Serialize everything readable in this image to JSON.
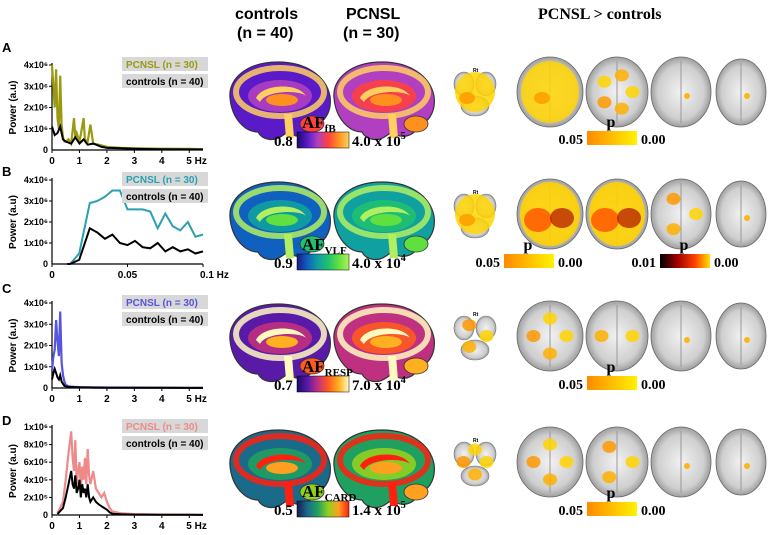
{
  "header": {
    "controls": "controls",
    "controls_n": "(n = 40)",
    "pcnsl": "PCNSL",
    "pcnsl_n": "(n = 30)",
    "contrast": "PCNSL > controls"
  },
  "colors": {
    "fb": "#9a9a10",
    "vlf": "#2aa0b0",
    "resp": "#5555dd",
    "card": "#ee8a8a",
    "controls": "#000000"
  },
  "chart_data": [
    {
      "panel": "A",
      "type": "line",
      "ylabel": "Power (a.u)",
      "xunit": "Hz",
      "xlim": [
        0,
        5.5
      ],
      "ylim": [
        0,
        4000000
      ],
      "xticks": [
        "0",
        "1",
        "2",
        "3",
        "4",
        "5 Hz"
      ],
      "yticks": [
        "1x10⁶",
        "2x10⁶",
        "3x10⁶",
        "4x10⁶"
      ],
      "legend": [
        "PCNSL (n = 30)",
        "controls (n = 40)"
      ],
      "series": [
        {
          "name": "PCNSL (n = 30)",
          "color": "#9a9a10",
          "x": [
            0,
            0.05,
            0.1,
            0.15,
            0.2,
            0.25,
            0.3,
            0.35,
            0.4,
            0.45,
            0.5,
            0.6,
            0.7,
            0.8,
            0.85,
            0.9,
            1.0,
            1.1,
            1.15,
            1.2,
            1.3,
            1.4,
            1.5,
            1.7,
            2.0,
            2.5,
            3.0,
            4.0,
            5.0,
            5.5
          ],
          "y": [
            4000000,
            3000000,
            2000000,
            3800000,
            1500000,
            1000000,
            3500000,
            1200000,
            600000,
            400000,
            400000,
            500000,
            300000,
            1500000,
            600000,
            800000,
            400000,
            1100000,
            1500000,
            500000,
            400000,
            1200000,
            300000,
            250000,
            150000,
            100000,
            80000,
            60000,
            50000,
            40000
          ]
        },
        {
          "name": "controls (n = 40)",
          "color": "#000000",
          "x": [
            0,
            0.1,
            0.2,
            0.3,
            0.4,
            0.5,
            0.7,
            0.85,
            1.0,
            1.15,
            1.3,
            1.5,
            1.8,
            2.0,
            2.5,
            3.0,
            4.0,
            5.0,
            5.5
          ],
          "y": [
            1100000,
            700000,
            800000,
            1100000,
            500000,
            400000,
            300000,
            600000,
            300000,
            500000,
            250000,
            300000,
            150000,
            100000,
            80000,
            60000,
            40000,
            30000,
            25000
          ]
        }
      ]
    },
    {
      "panel": "B",
      "type": "line",
      "ylabel": "Power (a.u)",
      "xunit": "Hz",
      "xlim": [
        0,
        0.1
      ],
      "ylim": [
        0,
        4000000
      ],
      "xticks": [
        "0",
        "0.05",
        "0.1 Hz"
      ],
      "yticks": [
        "1x10⁶",
        "2x10⁶",
        "3x10⁶",
        "4x10⁶"
      ],
      "legend": [
        "PCNSL (n = 30)",
        "controls (n = 40)"
      ],
      "series": [
        {
          "name": "PCNSL (n = 30)",
          "color": "#2aa0b0",
          "x": [
            0.01,
            0.012,
            0.018,
            0.025,
            0.03,
            0.035,
            0.04,
            0.045,
            0.05,
            0.055,
            0.06,
            0.065,
            0.07,
            0.075,
            0.08,
            0.085,
            0.09,
            0.095,
            0.1
          ],
          "y": [
            0,
            0,
            500000,
            2900000,
            3000000,
            3200000,
            3500000,
            3500000,
            2600000,
            2600000,
            2600000,
            2500000,
            1700000,
            2400000,
            1800000,
            1600000,
            2000000,
            1300000,
            1400000
          ]
        },
        {
          "name": "controls (n = 40)",
          "color": "#000000",
          "x": [
            0.01,
            0.012,
            0.018,
            0.025,
            0.03,
            0.035,
            0.04,
            0.045,
            0.05,
            0.055,
            0.06,
            0.065,
            0.07,
            0.075,
            0.08,
            0.085,
            0.09,
            0.095,
            0.1
          ],
          "y": [
            0,
            0,
            200000,
            1700000,
            1500000,
            1200000,
            1400000,
            1000000,
            900000,
            1100000,
            800000,
            750000,
            1000000,
            600000,
            800000,
            600000,
            700000,
            500000,
            600000
          ]
        }
      ]
    },
    {
      "panel": "C",
      "type": "line",
      "ylabel": "Power (a.u)",
      "xunit": "Hz",
      "xlim": [
        0,
        5.5
      ],
      "ylim": [
        0,
        4000000
      ],
      "xticks": [
        "0",
        "1",
        "2",
        "3",
        "4",
        "5 Hz"
      ],
      "yticks": [
        "1x10⁶",
        "2x10⁶",
        "3x10⁶",
        "4x10⁶"
      ],
      "legend": [
        "PCNSL (n = 30)",
        "controls (n = 40)"
      ],
      "series": [
        {
          "name": "PCNSL (n = 30)",
          "color": "#5555dd",
          "x": [
            0,
            0.05,
            0.1,
            0.15,
            0.2,
            0.25,
            0.3,
            0.35,
            0.4,
            0.45,
            0.5,
            0.6,
            0.8,
            1.0,
            1.5,
            2.0,
            3.0,
            4.0,
            5.0,
            5.5
          ],
          "y": [
            800000,
            1500000,
            1800000,
            3200000,
            2200000,
            1500000,
            3600000,
            1200000,
            600000,
            300000,
            150000,
            80000,
            50000,
            40000,
            30000,
            25000,
            20000,
            15000,
            10000,
            10000
          ]
        },
        {
          "name": "controls (n = 40)",
          "color": "#000000",
          "x": [
            0,
            0.05,
            0.1,
            0.15,
            0.2,
            0.25,
            0.3,
            0.35,
            0.4,
            0.45,
            0.5,
            0.6,
            0.8,
            1.0,
            1.5,
            2.0,
            3.0,
            4.0,
            5.0,
            5.5
          ],
          "y": [
            400000,
            700000,
            900000,
            700000,
            500000,
            400000,
            600000,
            300000,
            200000,
            100000,
            80000,
            50000,
            40000,
            30000,
            20000,
            15000,
            10000,
            8000,
            6000,
            5000
          ]
        }
      ]
    },
    {
      "panel": "D",
      "type": "line",
      "ylabel": "Power (a.u)",
      "xunit": "Hz",
      "xlim": [
        0,
        5.5
      ],
      "ylim": [
        0,
        1000000
      ],
      "xticks": [
        "0",
        "1",
        "2",
        "3",
        "4",
        "5 Hz"
      ],
      "yticks": [
        "2x10⁵",
        "4x10⁵",
        "6x10⁵",
        "8x10⁵",
        "1x10⁶"
      ],
      "legend": [
        "PCNSL (n = 30)",
        "controls (n = 40)"
      ],
      "series": [
        {
          "name": "PCNSL (n = 30)",
          "color": "#ee8a8a",
          "x": [
            0.2,
            0.4,
            0.5,
            0.6,
            0.7,
            0.75,
            0.8,
            0.85,
            0.9,
            0.95,
            1.0,
            1.05,
            1.1,
            1.15,
            1.2,
            1.25,
            1.3,
            1.35,
            1.4,
            1.5,
            1.6,
            1.7,
            1.8,
            1.9,
            2.0,
            2.1,
            2.2,
            2.5,
            3.0,
            4.0,
            5.0,
            5.5
          ],
          "y": [
            20000,
            150000,
            400000,
            700000,
            950000,
            650000,
            500000,
            850000,
            350000,
            500000,
            600000,
            300000,
            550000,
            400000,
            650000,
            350000,
            750000,
            450000,
            350000,
            500000,
            300000,
            250000,
            200000,
            250000,
            150000,
            80000,
            40000,
            20000,
            10000,
            5000,
            3000,
            2000
          ]
        },
        {
          "name": "controls (n = 40)",
          "color": "#000000",
          "x": [
            0.2,
            0.4,
            0.5,
            0.6,
            0.7,
            0.75,
            0.8,
            0.85,
            0.9,
            0.95,
            1.0,
            1.05,
            1.1,
            1.15,
            1.2,
            1.25,
            1.3,
            1.35,
            1.4,
            1.5,
            1.6,
            1.7,
            1.8,
            1.9,
            2.0,
            2.1,
            2.2,
            2.5,
            3.0,
            4.0,
            5.0,
            5.5
          ],
          "y": [
            10000,
            80000,
            200000,
            350000,
            500000,
            350000,
            300000,
            450000,
            250000,
            300000,
            400000,
            200000,
            350000,
            250000,
            300000,
            200000,
            350000,
            200000,
            150000,
            200000,
            150000,
            120000,
            100000,
            80000,
            60000,
            30000,
            15000,
            8000,
            5000,
            3000,
            2000,
            1000
          ]
        }
      ]
    }
  ],
  "colorbars": [
    {
      "name": "fB",
      "base": "AF",
      "sub": "fB",
      "min": "0.8",
      "max": "4.0 x 10",
      "exp": "5",
      "stops": [
        "#1a0a6a",
        "#5a1ac8",
        "#b040c0",
        "#ff4040",
        "#ff9020",
        "#ffd060"
      ]
    },
    {
      "name": "VLF",
      "base": "AF",
      "sub": "VLF",
      "min": "0.9",
      "max": "4.0 x 10",
      "exp": "4",
      "stops": [
        "#1a1a80",
        "#1060c0",
        "#10a0a0",
        "#20c070",
        "#60e040",
        "#b0f060"
      ]
    },
    {
      "name": "RESP",
      "base": "AF",
      "sub": "RESP",
      "min": "0.7",
      "max": "7.0 x 10",
      "exp": "4",
      "stops": [
        "#1a0a6a",
        "#5a1aa8",
        "#c03080",
        "#ff5a20",
        "#ffb020",
        "#fffac0"
      ]
    },
    {
      "name": "CARD",
      "base": "AF",
      "sub": "CARD",
      "min": "0.5",
      "max": "1.4 x 10",
      "exp": "5",
      "stops": [
        "#1a1a50",
        "#1a6a8a",
        "#20a060",
        "#90d020",
        "#ffa020",
        "#ff2010"
      ]
    }
  ],
  "pbars": [
    {
      "name": "A",
      "label": "p",
      "min": "0.05",
      "max": "0.00"
    },
    {
      "name": "B1",
      "label": "p",
      "min": "0.05",
      "max": "0.00"
    },
    {
      "name": "B2",
      "label": "p",
      "min": "0.01",
      "max": "0.00"
    },
    {
      "name": "C",
      "label": "p",
      "min": "0.05",
      "max": "0.00"
    },
    {
      "name": "D",
      "label": "p",
      "min": "0.05",
      "max": "0.00"
    }
  ],
  "slice_marker": "Rt",
  "panel_letters": [
    "A",
    "B",
    "C",
    "D"
  ]
}
